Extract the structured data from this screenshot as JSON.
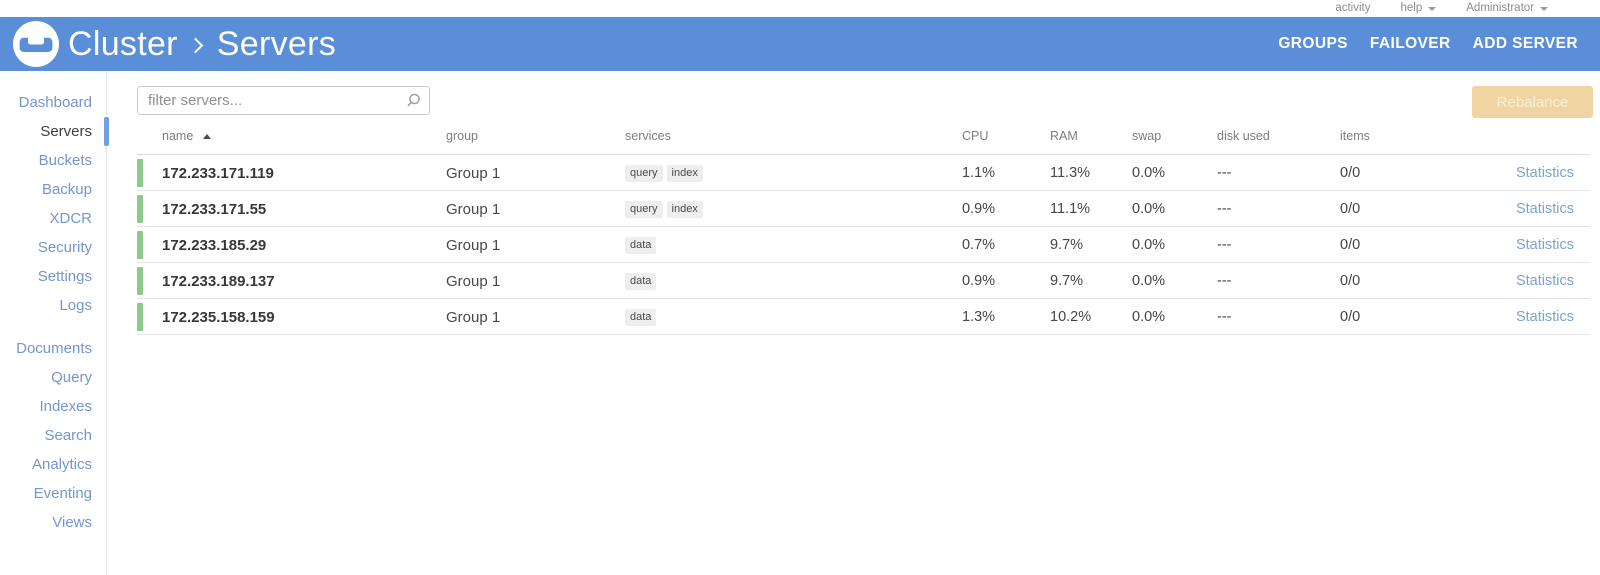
{
  "topbar": {
    "activity_label": "activity",
    "help_label": "help",
    "user_label": "Administrator"
  },
  "header": {
    "breadcrumb_cluster": "Cluster",
    "breadcrumb_section": "Servers",
    "actions": [
      {
        "label": "GROUPS"
      },
      {
        "label": "FAILOVER"
      },
      {
        "label": "ADD SERVER"
      }
    ]
  },
  "sidebar": {
    "groups": [
      {
        "items": [
          {
            "label": "Dashboard"
          },
          {
            "label": "Servers",
            "active": true
          },
          {
            "label": "Buckets"
          },
          {
            "label": "Backup"
          },
          {
            "label": "XDCR"
          },
          {
            "label": "Security"
          },
          {
            "label": "Settings"
          },
          {
            "label": "Logs"
          }
        ]
      },
      {
        "items": [
          {
            "label": "Documents"
          },
          {
            "label": "Query"
          },
          {
            "label": "Indexes"
          },
          {
            "label": "Search"
          },
          {
            "label": "Analytics"
          },
          {
            "label": "Eventing"
          },
          {
            "label": "Views"
          }
        ]
      }
    ]
  },
  "toolbar": {
    "filter_placeholder": "filter servers...",
    "rebalance_label": "Rebalance"
  },
  "table": {
    "columns": [
      "name",
      "group",
      "services",
      "CPU",
      "RAM",
      "swap",
      "disk used",
      "items"
    ],
    "sort": {
      "column": "name",
      "direction": "ascending"
    },
    "rows": [
      {
        "name": "172.233.171.119",
        "group": "Group 1",
        "services": [
          "query",
          "index"
        ],
        "cpu": "1.1%",
        "ram": "11.3%",
        "swap": "0.0%",
        "disk_used": "---",
        "items": "0/0",
        "statistics_label": "Statistics",
        "health": "healthy"
      },
      {
        "name": "172.233.171.55",
        "group": "Group 1",
        "services": [
          "query",
          "index"
        ],
        "cpu": "0.9%",
        "ram": "11.1%",
        "swap": "0.0%",
        "disk_used": "---",
        "items": "0/0",
        "statistics_label": "Statistics",
        "health": "healthy"
      },
      {
        "name": "172.233.185.29",
        "group": "Group 1",
        "services": [
          "data"
        ],
        "cpu": "0.7%",
        "ram": "9.7%",
        "swap": "0.0%",
        "disk_used": "---",
        "items": "0/0",
        "statistics_label": "Statistics",
        "health": "healthy"
      },
      {
        "name": "172.233.189.137",
        "group": "Group 1",
        "services": [
          "data"
        ],
        "cpu": "0.9%",
        "ram": "9.7%",
        "swap": "0.0%",
        "disk_used": "---",
        "items": "0/0",
        "statistics_label": "Statistics",
        "health": "healthy"
      },
      {
        "name": "172.235.158.159",
        "group": "Group 1",
        "services": [
          "data"
        ],
        "cpu": "1.3%",
        "ram": "10.2%",
        "swap": "0.0%",
        "disk_used": "---",
        "items": "0/0",
        "statistics_label": "Statistics",
        "health": "healthy"
      }
    ]
  },
  "colors": {
    "header_blue": "#5b8ed8",
    "sidebar_link_blue": "#7396cf",
    "active_indicator_blue": "#6fa1e0",
    "healthy_green": "#8ec88c",
    "statistics_link_blue": "#7aa3d2",
    "rebalance_bg": "#f0d5a2",
    "rebalance_text": "#f9eed8",
    "badge_bg": "#eeeeee"
  }
}
